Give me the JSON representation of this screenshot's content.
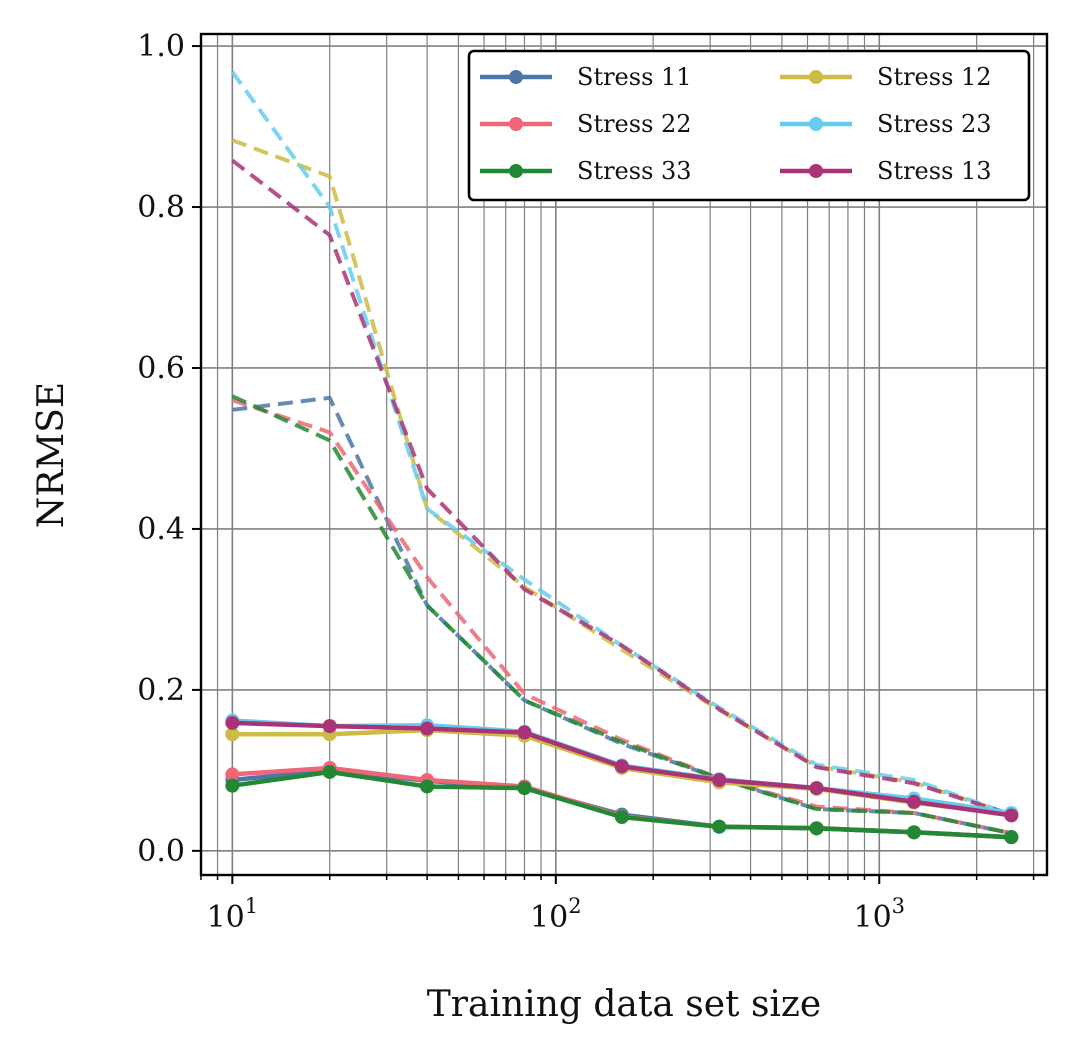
{
  "chart_data": {
    "type": "line",
    "xscale": "log",
    "xlabel": "Training data set size",
    "ylabel": "NRMSE",
    "xlim": [
      8,
      3300
    ],
    "ylim": [
      -0.03,
      1.015
    ],
    "yticks": [
      0.0,
      0.2,
      0.4,
      0.6,
      0.8,
      1.0
    ],
    "ytick_labels": [
      "0.0",
      "0.2",
      "0.4",
      "0.6",
      "0.8",
      "1.0"
    ],
    "xticks": [
      {
        "value": 10,
        "base": "10",
        "exp": "1"
      },
      {
        "value": 100,
        "base": "10",
        "exp": "2"
      },
      {
        "value": 1000,
        "base": "10",
        "exp": "3"
      }
    ],
    "grid": true,
    "legend_position": "top-right",
    "x": [
      10,
      20,
      40,
      80,
      160,
      320,
      640,
      1280,
      2560
    ],
    "series": [
      {
        "name": "Stress 11",
        "color": "#4a77a8",
        "solid": [
          0.088,
          0.1,
          0.087,
          0.078,
          0.045,
          0.03,
          0.028,
          0.023,
          0.017
        ],
        "dashed": [
          0.548,
          0.563,
          0.305,
          0.187,
          0.133,
          0.09,
          0.052,
          0.047,
          0.022
        ]
      },
      {
        "name": "Stress 12",
        "color": "#ccbb44",
        "solid": [
          0.145,
          0.145,
          0.15,
          0.143,
          0.103,
          0.085,
          0.077,
          0.06,
          0.045
        ],
        "dashed": [
          0.883,
          0.838,
          0.425,
          0.328,
          0.25,
          0.175,
          0.105,
          0.085,
          0.045
        ]
      },
      {
        "name": "Stress 22",
        "color": "#ee6677",
        "solid": [
          0.095,
          0.103,
          0.088,
          0.08,
          0.043,
          0.03,
          0.028,
          0.023,
          0.017
        ],
        "dashed": [
          0.56,
          0.52,
          0.34,
          0.195,
          0.138,
          0.09,
          0.055,
          0.047,
          0.022
        ]
      },
      {
        "name": "Stress 23",
        "color": "#66ccee",
        "solid": [
          0.162,
          0.155,
          0.156,
          0.148,
          0.106,
          0.089,
          0.078,
          0.065,
          0.047
        ],
        "dashed": [
          0.968,
          0.8,
          0.425,
          0.337,
          0.255,
          0.178,
          0.107,
          0.088,
          0.045
        ]
      },
      {
        "name": "Stress 33",
        "color": "#228833",
        "solid": [
          0.081,
          0.098,
          0.08,
          0.078,
          0.042,
          0.03,
          0.028,
          0.023,
          0.017
        ],
        "dashed": [
          0.565,
          0.51,
          0.305,
          0.187,
          0.135,
          0.09,
          0.052,
          0.047,
          0.022
        ]
      },
      {
        "name": "Stress 13",
        "color": "#aa3377",
        "solid": [
          0.159,
          0.155,
          0.152,
          0.147,
          0.105,
          0.088,
          0.078,
          0.061,
          0.044
        ],
        "dashed": [
          0.858,
          0.765,
          0.45,
          0.325,
          0.255,
          0.176,
          0.104,
          0.084,
          0.045
        ]
      }
    ],
    "legend_order": [
      "Stress 11",
      "Stress 22",
      "Stress 33",
      "Stress 12",
      "Stress 23",
      "Stress 13"
    ]
  }
}
